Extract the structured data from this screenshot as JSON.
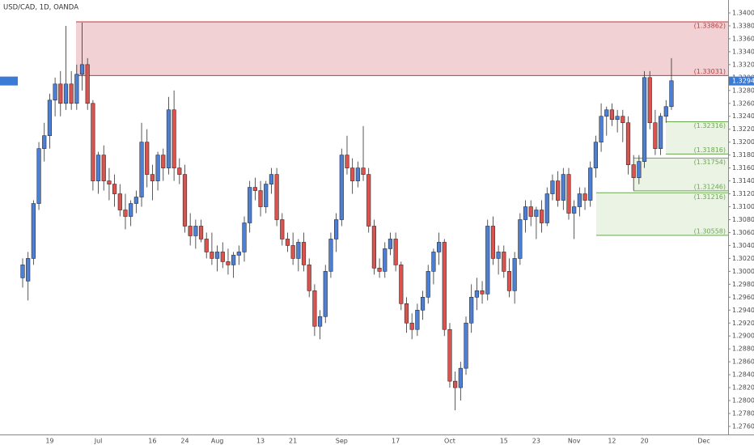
{
  "chart_data": {
    "type": "candlestick",
    "title": "USD/CAD, 1D, OANDA",
    "categories": [
      null,
      null,
      null,
      null,
      null,
      "19",
      null,
      null,
      null,
      null,
      null,
      null,
      null,
      null,
      "Jul",
      null,
      null,
      null,
      null,
      null,
      null,
      null,
      null,
      null,
      "16",
      null,
      null,
      null,
      null,
      null,
      "24",
      null,
      null,
      null,
      null,
      null,
      "Aug",
      null,
      null,
      null,
      null,
      null,
      null,
      null,
      "13",
      null,
      null,
      null,
      null,
      null,
      "21",
      null,
      null,
      null,
      null,
      null,
      null,
      null,
      null,
      "Sep",
      null,
      null,
      null,
      null,
      null,
      null,
      null,
      null,
      null,
      "17",
      null,
      null,
      null,
      null,
      null,
      null,
      null,
      null,
      null,
      "Oct",
      null,
      null,
      null,
      null,
      null,
      null,
      null,
      null,
      null,
      "15",
      null,
      null,
      null,
      null,
      null,
      "23",
      null,
      null,
      null,
      null,
      null,
      null,
      "Nov",
      null,
      null,
      null,
      null,
      null,
      null,
      "12",
      null,
      null,
      null,
      null,
      null,
      "20",
      null,
      null,
      null,
      null,
      null,
      null,
      null,
      null,
      null,
      null,
      "Dec"
    ],
    "open": [
      1.299,
      1.2985,
      1.302,
      1.3105,
      1.319,
      1.321,
      1.3265,
      1.329,
      1.326,
      1.329,
      1.326,
      1.3305,
      1.332,
      1.326,
      1.314,
      1.318,
      1.314,
      1.3135,
      1.312,
      1.3095,
      1.3085,
      1.3105,
      1.3115,
      1.32,
      1.315,
      1.314,
      1.318,
      1.316,
      1.325,
      1.316,
      1.315,
      1.307,
      1.3055,
      1.307,
      1.305,
      1.303,
      1.302,
      1.303,
      1.3015,
      1.301,
      1.3025,
      1.303,
      1.3075,
      1.313,
      1.3125,
      1.31,
      1.3135,
      1.315,
      1.308,
      1.305,
      1.304,
      1.302,
      1.3045,
      1.301,
      1.297,
      1.2915,
      1.293,
      1.3,
      1.305,
      1.308,
      1.318,
      1.316,
      1.314,
      1.316,
      1.315,
      1.307,
      1.3005,
      1.3,
      1.3035,
      1.305,
      1.301,
      1.295,
      1.292,
      1.291,
      1.294,
      1.296,
      1.3,
      1.303,
      1.3045,
      1.291,
      1.283,
      1.282,
      1.285,
      1.292,
      1.296,
      1.297,
      1.2965,
      1.307,
      1.302,
      1.303,
      1.3,
      1.297,
      1.302,
      1.308,
      1.31,
      1.3085,
      1.3095,
      1.3075,
      1.312,
      1.314,
      1.311,
      1.315,
      1.309,
      1.31,
      1.312,
      1.311,
      1.316,
      1.32,
      1.324,
      1.325,
      1.3235,
      1.324,
      1.323,
      1.3165,
      1.3145,
      1.317,
      1.33,
      1.323,
      1.319,
      1.324,
      1.3255,
      null,
      null,
      null,
      null,
      null,
      null
    ],
    "high": [
      1.302,
      1.303,
      1.311,
      1.32,
      1.323,
      1.3275,
      1.33,
      1.331,
      1.338,
      1.331,
      1.332,
      1.3385,
      1.333,
      1.3265,
      1.3185,
      1.3195,
      1.316,
      1.315,
      1.3135,
      1.312,
      1.311,
      1.3125,
      1.323,
      1.322,
      1.3165,
      1.3185,
      1.319,
      1.327,
      1.328,
      1.3175,
      1.3165,
      1.309,
      1.308,
      1.308,
      1.306,
      1.306,
      1.304,
      1.3045,
      1.3035,
      1.303,
      1.304,
      1.3085,
      1.314,
      1.3145,
      1.314,
      1.314,
      1.316,
      1.316,
      1.309,
      1.306,
      1.306,
      1.305,
      1.306,
      1.302,
      1.298,
      1.294,
      1.301,
      1.306,
      1.309,
      1.319,
      1.321,
      1.3175,
      1.317,
      1.3225,
      1.316,
      1.308,
      1.302,
      1.3045,
      1.306,
      1.306,
      1.3015,
      1.296,
      1.2935,
      1.295,
      1.297,
      1.301,
      1.3035,
      1.306,
      1.305,
      1.292,
      1.2845,
      1.286,
      1.293,
      1.298,
      1.299,
      1.2985,
      1.308,
      1.3085,
      1.304,
      1.304,
      1.302,
      1.303,
      1.309,
      1.311,
      1.311,
      1.31,
      1.311,
      1.313,
      1.315,
      1.3155,
      1.316,
      1.316,
      1.311,
      1.313,
      1.313,
      1.317,
      1.321,
      1.326,
      1.3255,
      1.326,
      1.325,
      1.325,
      1.324,
      1.318,
      1.318,
      1.331,
      1.331,
      1.325,
      1.3245,
      1.3265,
      1.333,
      null,
      null,
      null,
      null,
      null,
      null
    ],
    "low": [
      1.2975,
      1.2955,
      1.301,
      1.3095,
      1.317,
      1.319,
      1.324,
      1.324,
      1.325,
      1.325,
      1.325,
      1.328,
      1.325,
      1.3125,
      1.312,
      1.3125,
      1.311,
      1.31,
      1.3085,
      1.3065,
      1.307,
      1.309,
      1.31,
      1.313,
      1.311,
      1.3125,
      1.314,
      1.315,
      1.314,
      1.3135,
      1.306,
      1.304,
      1.3035,
      1.3045,
      1.302,
      1.301,
      1.3,
      1.3005,
      1.2995,
      1.299,
      1.301,
      1.3015,
      1.306,
      1.311,
      1.3085,
      1.309,
      1.312,
      1.307,
      1.304,
      1.303,
      1.301,
      1.3,
      1.3,
      1.296,
      1.29,
      1.2895,
      1.292,
      1.299,
      1.303,
      1.307,
      1.315,
      1.312,
      1.313,
      1.314,
      1.306,
      1.2995,
      1.299,
      1.299,
      1.3025,
      1.3,
      1.294,
      1.2905,
      1.2895,
      1.29,
      1.2925,
      1.295,
      1.298,
      1.301,
      1.29,
      1.282,
      1.2785,
      1.28,
      1.284,
      1.2905,
      1.294,
      1.295,
      1.2955,
      1.301,
      1.2995,
      1.299,
      1.296,
      1.295,
      1.301,
      1.306,
      1.307,
      1.305,
      1.306,
      1.307,
      1.311,
      1.31,
      1.3095,
      1.308,
      1.305,
      1.3085,
      1.3095,
      1.31,
      1.3145,
      1.3185,
      1.321,
      1.3225,
      1.3215,
      1.32,
      1.315,
      1.3125,
      1.3135,
      1.316,
      1.322,
      1.318,
      1.318,
      1.323,
      1.325,
      null,
      null,
      null,
      null,
      null,
      null
    ],
    "close": [
      1.301,
      1.302,
      1.3105,
      1.319,
      1.321,
      1.3265,
      1.329,
      1.326,
      1.329,
      1.326,
      1.3305,
      1.332,
      1.326,
      1.314,
      1.318,
      1.314,
      1.3135,
      1.312,
      1.3095,
      1.3085,
      1.3105,
      1.3115,
      1.32,
      1.315,
      1.314,
      1.318,
      1.316,
      1.325,
      1.316,
      1.315,
      1.307,
      1.3055,
      1.307,
      1.305,
      1.303,
      1.302,
      1.303,
      1.3015,
      1.301,
      1.3025,
      1.303,
      1.3075,
      1.313,
      1.3125,
      1.31,
      1.3135,
      1.315,
      1.308,
      1.305,
      1.304,
      1.302,
      1.3045,
      1.301,
      1.297,
      1.2915,
      1.293,
      1.3,
      1.305,
      1.308,
      1.318,
      1.316,
      1.314,
      1.316,
      1.315,
      1.307,
      1.3005,
      1.3,
      1.3035,
      1.305,
      1.301,
      1.295,
      1.292,
      1.291,
      1.294,
      1.296,
      1.3,
      1.303,
      1.3045,
      1.291,
      1.283,
      1.282,
      1.285,
      1.292,
      1.296,
      1.297,
      1.2965,
      1.307,
      1.302,
      1.303,
      1.3,
      1.297,
      1.302,
      1.308,
      1.31,
      1.3085,
      1.3095,
      1.3075,
      1.312,
      1.314,
      1.311,
      1.315,
      1.309,
      1.31,
      1.312,
      1.311,
      1.316,
      1.32,
      1.324,
      1.325,
      1.3235,
      1.324,
      1.323,
      1.3165,
      1.3145,
      1.317,
      1.33,
      1.323,
      1.319,
      1.324,
      1.3255,
      1.3295,
      null,
      null,
      null,
      null,
      null,
      null
    ],
    "up_color": "#4d7fd4",
    "down_color": "#d9534f",
    "outline_color": "#2f2f2f",
    "ylim": [
      1.27475,
      1.342
    ],
    "yticks": [
      {
        "value": 1.276,
        "label": "1.27600"
      },
      {
        "value": 1.278,
        "label": "1.27800"
      },
      {
        "value": 1.28,
        "label": "1.28000"
      },
      {
        "value": 1.282,
        "label": "1.28200"
      },
      {
        "value": 1.284,
        "label": "1.28400"
      },
      {
        "value": 1.286,
        "label": "1.28600"
      },
      {
        "value": 1.288,
        "label": "1.28800"
      },
      {
        "value": 1.29,
        "label": "1.29000"
      },
      {
        "value": 1.292,
        "label": "1.29200"
      },
      {
        "value": 1.294,
        "label": "1.29400"
      },
      {
        "value": 1.296,
        "label": "1.29600"
      },
      {
        "value": 1.298,
        "label": "1.29800"
      },
      {
        "value": 1.3,
        "label": "1.30000"
      },
      {
        "value": 1.302,
        "label": "1.30200"
      },
      {
        "value": 1.304,
        "label": "1.30400"
      },
      {
        "value": 1.306,
        "label": "1.30600"
      },
      {
        "value": 1.308,
        "label": "1.30800"
      },
      {
        "value": 1.31,
        "label": "1.31000"
      },
      {
        "value": 1.312,
        "label": "1.31200"
      },
      {
        "value": 1.314,
        "label": "1.31400"
      },
      {
        "value": 1.316,
        "label": "1.31600"
      },
      {
        "value": 1.318,
        "label": "1.31800"
      },
      {
        "value": 1.32,
        "label": "1.32000"
      },
      {
        "value": 1.322,
        "label": "1.32200"
      },
      {
        "value": 1.324,
        "label": "1.32400"
      },
      {
        "value": 1.326,
        "label": "1.32600"
      },
      {
        "value": 1.328,
        "label": "1.32800"
      },
      {
        "value": 1.33,
        "label": "1.33000"
      },
      {
        "value": 1.332,
        "label": "1.33200"
      },
      {
        "value": 1.334,
        "label": "1.33400"
      },
      {
        "value": 1.336,
        "label": "1.33600"
      },
      {
        "value": 1.338,
        "label": "1.33800"
      },
      {
        "value": 1.34,
        "label": "1.34000"
      }
    ],
    "last_price": 1.32946,
    "last_price_color": "#3a7bd5",
    "zones": [
      {
        "top": {
          "value": 1.33862,
          "label": "(1.33862)"
        },
        "bottom": {
          "value": 1.33031,
          "label": "(1.33031)"
        },
        "fill": "#eec9cb",
        "line": "#c0393f"
      },
      {
        "top": {
          "value": 1.32316,
          "label": "(1.32316)"
        },
        "bottom": {
          "value": 1.31816,
          "label": "(1.31816)"
        },
        "fill": "#e6f1df",
        "line": "#6aa84f"
      },
      {
        "top": {
          "value": 1.31754,
          "label": "(1.31754)"
        },
        "bottom": {
          "value": 1.31246,
          "label": "(1.31246)"
        },
        "fill": "#e6f1df",
        "line": "#6aa84f"
      },
      {
        "top": {
          "value": 1.31216,
          "label": "(1.31216)"
        },
        "bottom": {
          "value": 1.30558,
          "label": "(1.30558)"
        },
        "fill": "#e6f1df",
        "line": "#6aa84f"
      }
    ]
  }
}
